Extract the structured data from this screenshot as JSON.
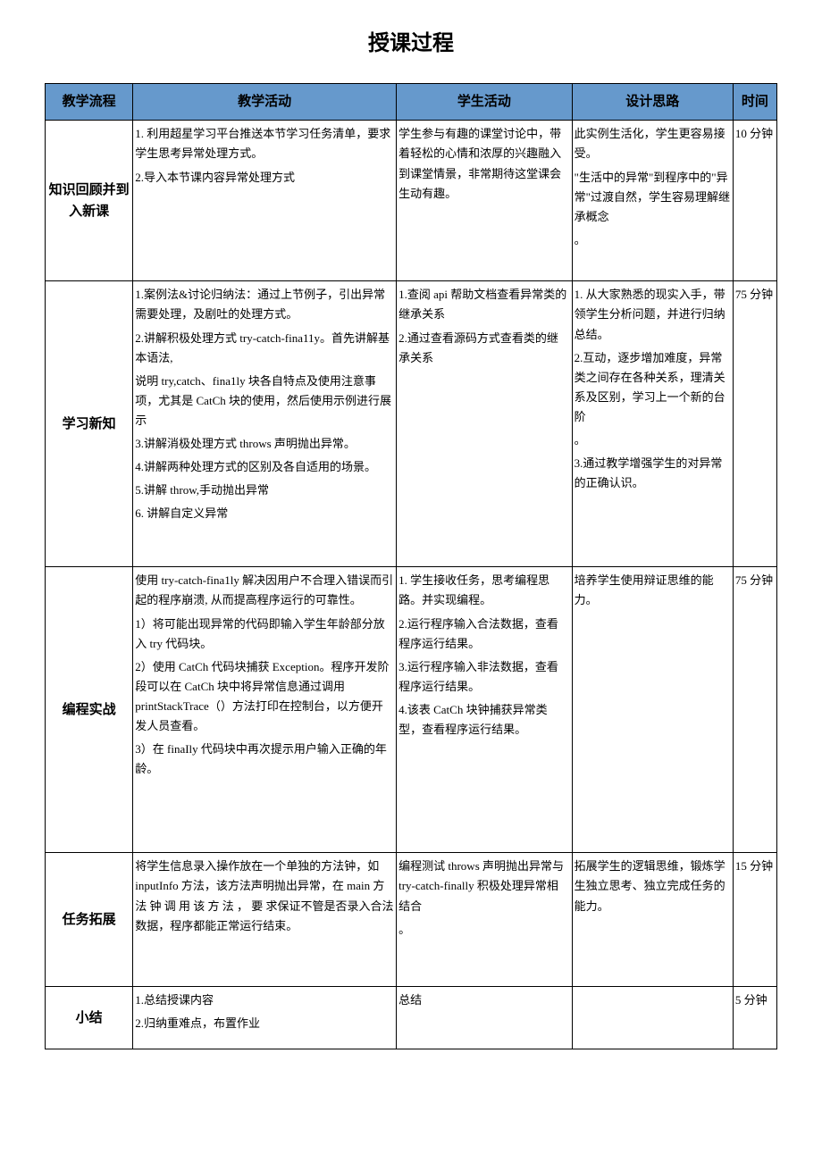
{
  "title": "授课过程",
  "colors": {
    "header_bg": "#6699cc",
    "border": "#000000",
    "text": "#000000",
    "page_bg": "#ffffff"
  },
  "typography": {
    "title_fontsize": 24,
    "header_fontsize": 15,
    "body_fontsize": 13,
    "label_fontsize": 15
  },
  "headers": [
    "教学流程",
    "教学活动",
    "学生活动",
    "设计思路",
    "时间"
  ],
  "column_widths_pct": [
    12,
    36,
    24,
    22,
    6
  ],
  "rows": [
    {
      "flow": "知识回顾并到入新课",
      "activity": [
        "1. 利用超星学习平台推送本节学习任务清单，要求学生思考异常处理方式。",
        "2.导入本节课内容异常处理方式"
      ],
      "student": [
        "学生参与有趣的课堂讨论中，带着轻松的心情和浓厚的兴趣融入到课堂情景，非常期待这堂课会生动有趣。"
      ],
      "design": [
        "此实例生活化，学生更容易接受。",
        "\"生活中的异常\"到程序中的\"异常\"过渡自然，学生容易理解继承概念",
        "。"
      ],
      "time": "10 分钟"
    },
    {
      "flow": "学习新知",
      "activity": [
        "1.案例法&讨论归纳法：通过上节例子，引出异常需要处理，及剧吐的处理方式。",
        "2.讲解积极处理方式 try-catch-fina11y。首先讲解基本语法,",
        "说明 try,catch、fina1ly 块各自特点及使用注意事项，尤其是 CatCh 块的使用，然后使用示例进行展示",
        "3.讲解消极处理方式 throws 声明抛出异常。",
        "4.讲解两种处理方式的区别及各自适用的场景。",
        "5.讲解 throw,手动抛出异常",
        "6. 讲解自定义异常"
      ],
      "student": [
        "1.查阅 api 帮助文档查看异常类的继承关系",
        "2.通过查看源码方式查看类的继承关系"
      ],
      "design": [
        "1. 从大家熟悉的现实入手，带领学生分析问题，并进行归纳总结。",
        "2.互动，逐步增加难度，异常类之间存在各种关系，理清关系及区别，学习上一个新的台阶",
        "。",
        "3.通过教学增强学生的对异常的正确认识。"
      ],
      "time": "75 分钟"
    },
    {
      "flow": "编程实战",
      "activity": [
        "使用 try-catch-fina1ly 解决因用户不合理入错误而引起的程序崩溃, 从而提高程序运行的可靠性。",
        "1）将可能出现异常的代码即输入学生年龄部分放入 try 代码块。",
        "2）使用 CatCh 代码块捕获 Exception。程序开发阶段可以在 CatCh 块中将异常信息通过调用 printStackTrace（）方法打印在控制台，以方便开发人员查看。",
        "3）在 finaIly 代码块中再次提示用户输入正确的年龄。"
      ],
      "student": [
        "1. 学生接收任务，思考编程思路。并实现编程。",
        "2.运行程序输入合法数据，查看程序运行结果。",
        "3.运行程序输入非法数据，查看程序运行结果。",
        "4.该表 CatCh 块钟捕获异常类型，查看程序运行结果。"
      ],
      "design": [
        "培养学生使用辩证思维的能力。"
      ],
      "time": "75 分钟"
    },
    {
      "flow": "任务拓展",
      "activity": [
        "将学生信息录入操作放在一个单独的方法钟，如 inputInfo 方法，该方法声明抛出异常，在 main 方 法 钟 调 用 该 方 法 ， 要 求保证不管是否录入合法数据，程序都能正常运行结束。"
      ],
      "student": [
        "编程测试 throws 声明抛出异常与 try-catch-finally 积极处理异常相结合",
        "。"
      ],
      "design": [
        "拓展学生的逻辑思维，锻炼学生独立思考、独立完成任务的能力。"
      ],
      "time": "15 分钟"
    },
    {
      "flow": "小结",
      "activity": [
        "1.总结授课内容",
        "2.归纳重难点，布置作业"
      ],
      "student": [
        "总结"
      ],
      "design": [],
      "time": "5 分钟"
    }
  ]
}
